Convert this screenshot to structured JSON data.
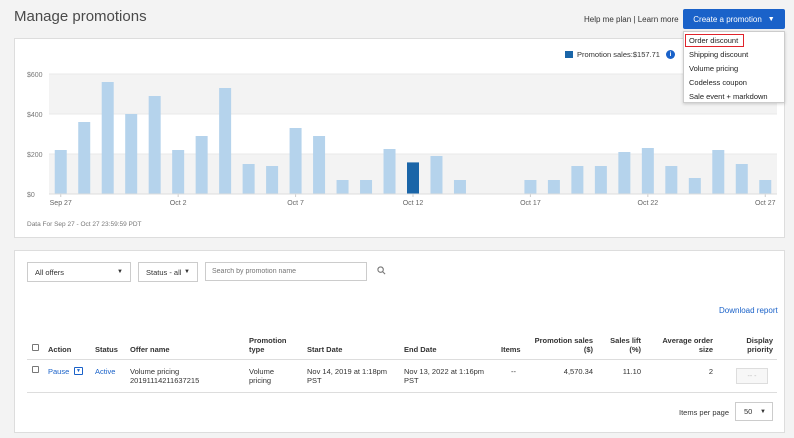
{
  "header": {
    "title": "Manage promotions",
    "help_link": "Help me plan",
    "separator": "|",
    "learn_link": "Learn more",
    "create_button": "Create a promotion"
  },
  "create_menu": {
    "items": [
      "Order discount",
      "Shipping discount",
      "Volume pricing",
      "Codeless coupon",
      "Sale event + markdown"
    ],
    "highlighted": "Order discount"
  },
  "chart": {
    "legend_label": "Promotion sales:$157.71",
    "data_note": "Data For Sep 27 - Oct 27 23:59:59 PDT"
  },
  "chart_data": {
    "type": "bar",
    "y_tick_labels": [
      "$600",
      "$400",
      "$200",
      "$0"
    ],
    "y_ticks": [
      600,
      400,
      200,
      0
    ],
    "ylim": [
      0,
      600
    ],
    "x_tick_labels": [
      "Sep 27",
      "Oct 2",
      "Oct 7",
      "Oct 12",
      "Oct 17",
      "Oct 22",
      "Oct 27"
    ],
    "categories": [
      "Sep 27",
      "Sep 28",
      "Sep 29",
      "Sep 30",
      "Oct 1",
      "Oct 2",
      "Oct 3",
      "Oct 4",
      "Oct 5",
      "Oct 6",
      "Oct 7",
      "Oct 8",
      "Oct 9",
      "Oct 10",
      "Oct 11",
      "Oct 12",
      "Oct 13",
      "Oct 14",
      "Oct 15",
      "Oct 16",
      "Oct 17",
      "Oct 18",
      "Oct 19",
      "Oct 20",
      "Oct 21",
      "Oct 22",
      "Oct 23",
      "Oct 24",
      "Oct 25",
      "Oct 26",
      "Oct 27"
    ],
    "series": [
      {
        "name": "Sales",
        "values": [
          220,
          360,
          560,
          400,
          490,
          220,
          290,
          530,
          150,
          140,
          330,
          290,
          70,
          70,
          225,
          155,
          190,
          70,
          0,
          0,
          70,
          70,
          140,
          140,
          210,
          230,
          140,
          80,
          220,
          150,
          70
        ]
      },
      {
        "name": "Promotion sales",
        "values": [
          0,
          0,
          0,
          0,
          0,
          0,
          0,
          0,
          0,
          0,
          0,
          0,
          0,
          0,
          0,
          158,
          0,
          0,
          0,
          0,
          0,
          0,
          0,
          0,
          0,
          0,
          0,
          0,
          0,
          0,
          0
        ]
      }
    ],
    "colors": {
      "sales": "#b5d3ec",
      "promotion": "#1a65a8"
    },
    "grid": true
  },
  "filters": {
    "offers_select": "All offers",
    "status_select": "Status - all",
    "search_placeholder": "Search by promotion name"
  },
  "table": {
    "download_link": "Download report",
    "headers": {
      "action": "Action",
      "status": "Status",
      "offer_name": "Offer name",
      "promotion_type_1": "Promotion",
      "promotion_type_2": "type",
      "start_date": "Start Date",
      "end_date": "End Date",
      "items": "Items",
      "promotion_sales_1": "Promotion sales",
      "promotion_sales_2": "($)",
      "sales_lift_1": "Sales lift",
      "sales_lift_2": "(%)",
      "avg_order_1": "Average order",
      "avg_order_2": "size",
      "display_1": "Display",
      "display_2": "priority"
    },
    "rows": [
      {
        "action": "Pause",
        "status": "Active",
        "offer_name_1": "Volume pricing",
        "offer_name_2": "20191114211637215",
        "type_1": "Volume",
        "type_2": "pricing",
        "start_1": "Nov 14, 2019 at 1:18pm",
        "start_2": "PST",
        "end_1": "Nov 13, 2022 at 1:16pm",
        "end_2": "PST",
        "items": "--",
        "promotion_sales": "4,570.34",
        "sales_lift": "11.10",
        "avg_order": "2",
        "display_priority": "-- -"
      }
    ],
    "items_per_page_label": "Items per page",
    "items_per_page_value": "50"
  }
}
